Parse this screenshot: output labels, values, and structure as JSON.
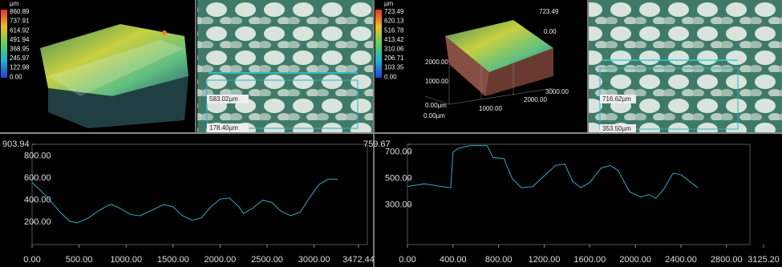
{
  "panels": {
    "view3d_1": {
      "unit": "µm",
      "colorbar": [
        "860.89",
        "737.91",
        "614.92",
        "491.94",
        "368.95",
        "245.97",
        "122.98",
        "0.00"
      ]
    },
    "image_1": {
      "labels": [
        "583.02µm",
        "178.40µm"
      ]
    },
    "view3d_2": {
      "unit": "µm",
      "colorbar": [
        "723.49",
        "620.13",
        "516.78",
        "413.42",
        "310.06",
        "206.71",
        "103.35",
        "0.00"
      ],
      "axis_labels": [
        "723.49",
        "0.00",
        "2000.00",
        "1000.00",
        "0.00µm",
        "1000.00",
        "2000.00",
        "3000.00",
        "0.00µm"
      ]
    },
    "image_2": {
      "labels": [
        "716.62µm",
        "353.50µm"
      ]
    }
  },
  "chart_data": [
    {
      "type": "line",
      "x": [
        0,
        100,
        200,
        300,
        400,
        480,
        600,
        700,
        800,
        850,
        950,
        1050,
        1150,
        1250,
        1400,
        1500,
        1600,
        1700,
        1800,
        1900,
        2000,
        2100,
        2200,
        2250,
        2350,
        2450,
        2550,
        2650,
        2750,
        2850,
        2950,
        3050,
        3150,
        3250
      ],
      "series": [
        {
          "color": "#3aa6b9",
          "values": [
            560,
            480,
            390,
            290,
            210,
            195,
            240,
            300,
            350,
            360,
            320,
            270,
            260,
            300,
            360,
            340,
            260,
            220,
            240,
            340,
            410,
            420,
            340,
            280,
            330,
            400,
            380,
            300,
            260,
            290,
            420,
            540,
            590,
            590
          ]
        }
      ],
      "xlim": [
        0,
        3472.44
      ],
      "xticks": [
        {
          "value": 0,
          "label": "0.00"
        },
        {
          "value": 500,
          "label": "500.00"
        },
        {
          "value": 1000,
          "label": "1000.00"
        },
        {
          "value": 1500,
          "label": "1500.00"
        },
        {
          "value": 2000,
          "label": "2000.00"
        },
        {
          "value": 2500,
          "label": "2500.00"
        },
        {
          "value": 3000,
          "label": "3000.00"
        },
        3472.44
      ],
      "ylim": [
        0,
        903.94
      ],
      "yticks": [
        {
          "value": 200,
          "label": "200.00"
        },
        {
          "value": 400,
          "label": "400.00"
        },
        {
          "value": 600,
          "label": "600.00"
        },
        {
          "value": 800,
          "label": "800.00"
        },
        903.94
      ]
    },
    {
      "type": "line",
      "x": [
        0,
        150,
        300,
        380,
        400,
        450,
        550,
        700,
        750,
        850,
        870,
        920,
        1000,
        1100,
        1200,
        1300,
        1380,
        1450,
        1520,
        1600,
        1700,
        1780,
        1850,
        1950,
        2050,
        2120,
        2180,
        2250,
        2330,
        2400,
        2550
      ],
      "series": [
        {
          "color": "#3aa6b9",
          "values": [
            440,
            460,
            440,
            430,
            700,
            730,
            750,
            750,
            660,
            650,
            600,
            500,
            430,
            440,
            520,
            600,
            610,
            480,
            430,
            470,
            580,
            600,
            560,
            400,
            360,
            380,
            350,
            420,
            540,
            530,
            430
          ]
        }
      ],
      "xlim": [
        0,
        3125.2
      ],
      "xticks": [
        {
          "value": 0,
          "label": "0.00"
        },
        {
          "value": 400,
          "label": "400.00"
        },
        {
          "value": 800,
          "label": "800.00"
        },
        {
          "value": 1200,
          "label": "1200.00"
        },
        {
          "value": 1600,
          "label": "1600.00"
        },
        {
          "value": 2000,
          "label": "2000.00"
        },
        {
          "value": 2400,
          "label": "2400.00"
        },
        {
          "value": 2800,
          "label": "2800.00"
        },
        {
          "value": 3125.2,
          "label": "3125.20"
        }
      ],
      "ylim": [
        0,
        759.67
      ],
      "yticks": [
        {
          "value": 300,
          "label": "300.00"
        },
        {
          "value": 500,
          "label": "500.00"
        },
        {
          "value": 700,
          "label": "700.00"
        },
        759.67
      ]
    }
  ]
}
